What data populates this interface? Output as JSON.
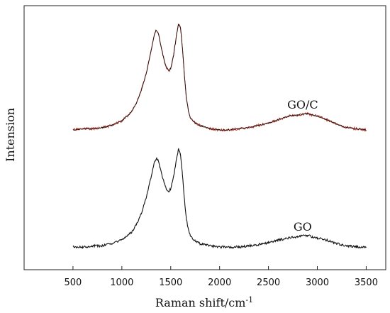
{
  "chart_data": {
    "type": "line",
    "xlabel": "Raman shift/cm",
    "xlabel_sup": "-1",
    "ylabel": "Intension",
    "xlim": [
      0,
      3700
    ],
    "xticks": [
      500,
      1000,
      1500,
      2000,
      2500,
      3000,
      3500
    ],
    "y_ticks_shown": false,
    "grid": false,
    "legend": "none",
    "series": [
      {
        "name": "GO/C",
        "color": "#c0392b",
        "overlay_color": "#111111",
        "offset": 1.4,
        "x": [
          500,
          600,
          700,
          800,
          900,
          1000,
          1100,
          1150,
          1200,
          1250,
          1300,
          1330,
          1350,
          1370,
          1390,
          1420,
          1450,
          1480,
          1500,
          1530,
          1560,
          1580,
          1600,
          1620,
          1640,
          1660,
          1680,
          1700,
          1750,
          1800,
          1900,
          2000,
          2100,
          2200,
          2300,
          2400,
          2500,
          2600,
          2700,
          2800,
          2850,
          2900,
          2950,
          3000,
          3100,
          3200,
          3300,
          3400,
          3500
        ],
        "values": [
          0.0,
          0.01,
          0.01,
          0.02,
          0.04,
          0.08,
          0.16,
          0.24,
          0.35,
          0.5,
          0.7,
          0.83,
          0.88,
          0.86,
          0.78,
          0.66,
          0.56,
          0.52,
          0.54,
          0.66,
          0.84,
          0.93,
          0.9,
          0.72,
          0.48,
          0.28,
          0.17,
          0.11,
          0.06,
          0.04,
          0.01,
          0.0,
          0.0,
          0.01,
          0.02,
          0.04,
          0.06,
          0.09,
          0.12,
          0.13,
          0.14,
          0.14,
          0.13,
          0.12,
          0.09,
          0.05,
          0.02,
          0.01,
          0.0
        ]
      },
      {
        "name": "GO",
        "color": "#111111",
        "offset": 0.0,
        "x": [
          500,
          600,
          700,
          800,
          900,
          1000,
          1100,
          1150,
          1200,
          1250,
          1300,
          1330,
          1350,
          1370,
          1390,
          1420,
          1450,
          1480,
          1500,
          1530,
          1560,
          1580,
          1600,
          1620,
          1640,
          1660,
          1680,
          1700,
          1750,
          1800,
          1900,
          2000,
          2100,
          2200,
          2300,
          2400,
          2500,
          2600,
          2700,
          2800,
          2850,
          2900,
          2950,
          3000,
          3100,
          3200,
          3300,
          3400,
          3500
        ],
        "values": [
          0.0,
          0.0,
          0.01,
          0.01,
          0.03,
          0.06,
          0.13,
          0.2,
          0.3,
          0.44,
          0.62,
          0.74,
          0.78,
          0.77,
          0.7,
          0.6,
          0.52,
          0.49,
          0.51,
          0.62,
          0.78,
          0.86,
          0.82,
          0.64,
          0.42,
          0.25,
          0.15,
          0.1,
          0.05,
          0.03,
          0.01,
          0.0,
          0.0,
          0.0,
          0.01,
          0.02,
          0.04,
          0.06,
          0.08,
          0.09,
          0.1,
          0.1,
          0.09,
          0.08,
          0.06,
          0.03,
          0.01,
          0.0,
          0.0
        ]
      }
    ]
  }
}
